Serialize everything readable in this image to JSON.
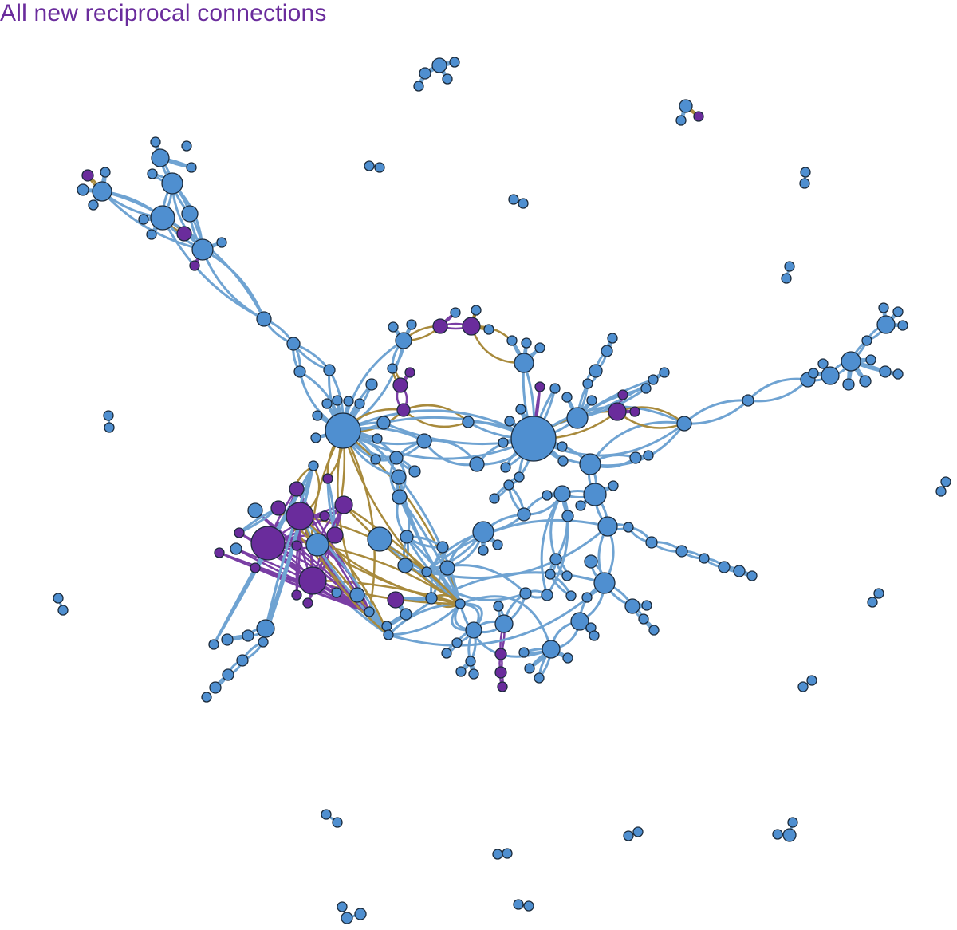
{
  "title": "All new reciprocal connections",
  "colors": {
    "blue_node": "#4f8fd0",
    "purple_node": "#6a2c9c",
    "blue_edge": "#6fa3d2",
    "gold_edge": "#a88a3c",
    "purple_edge": "#7a3ea4",
    "outline": "#1b2a3a",
    "title": "#6a2c9c"
  }
}
